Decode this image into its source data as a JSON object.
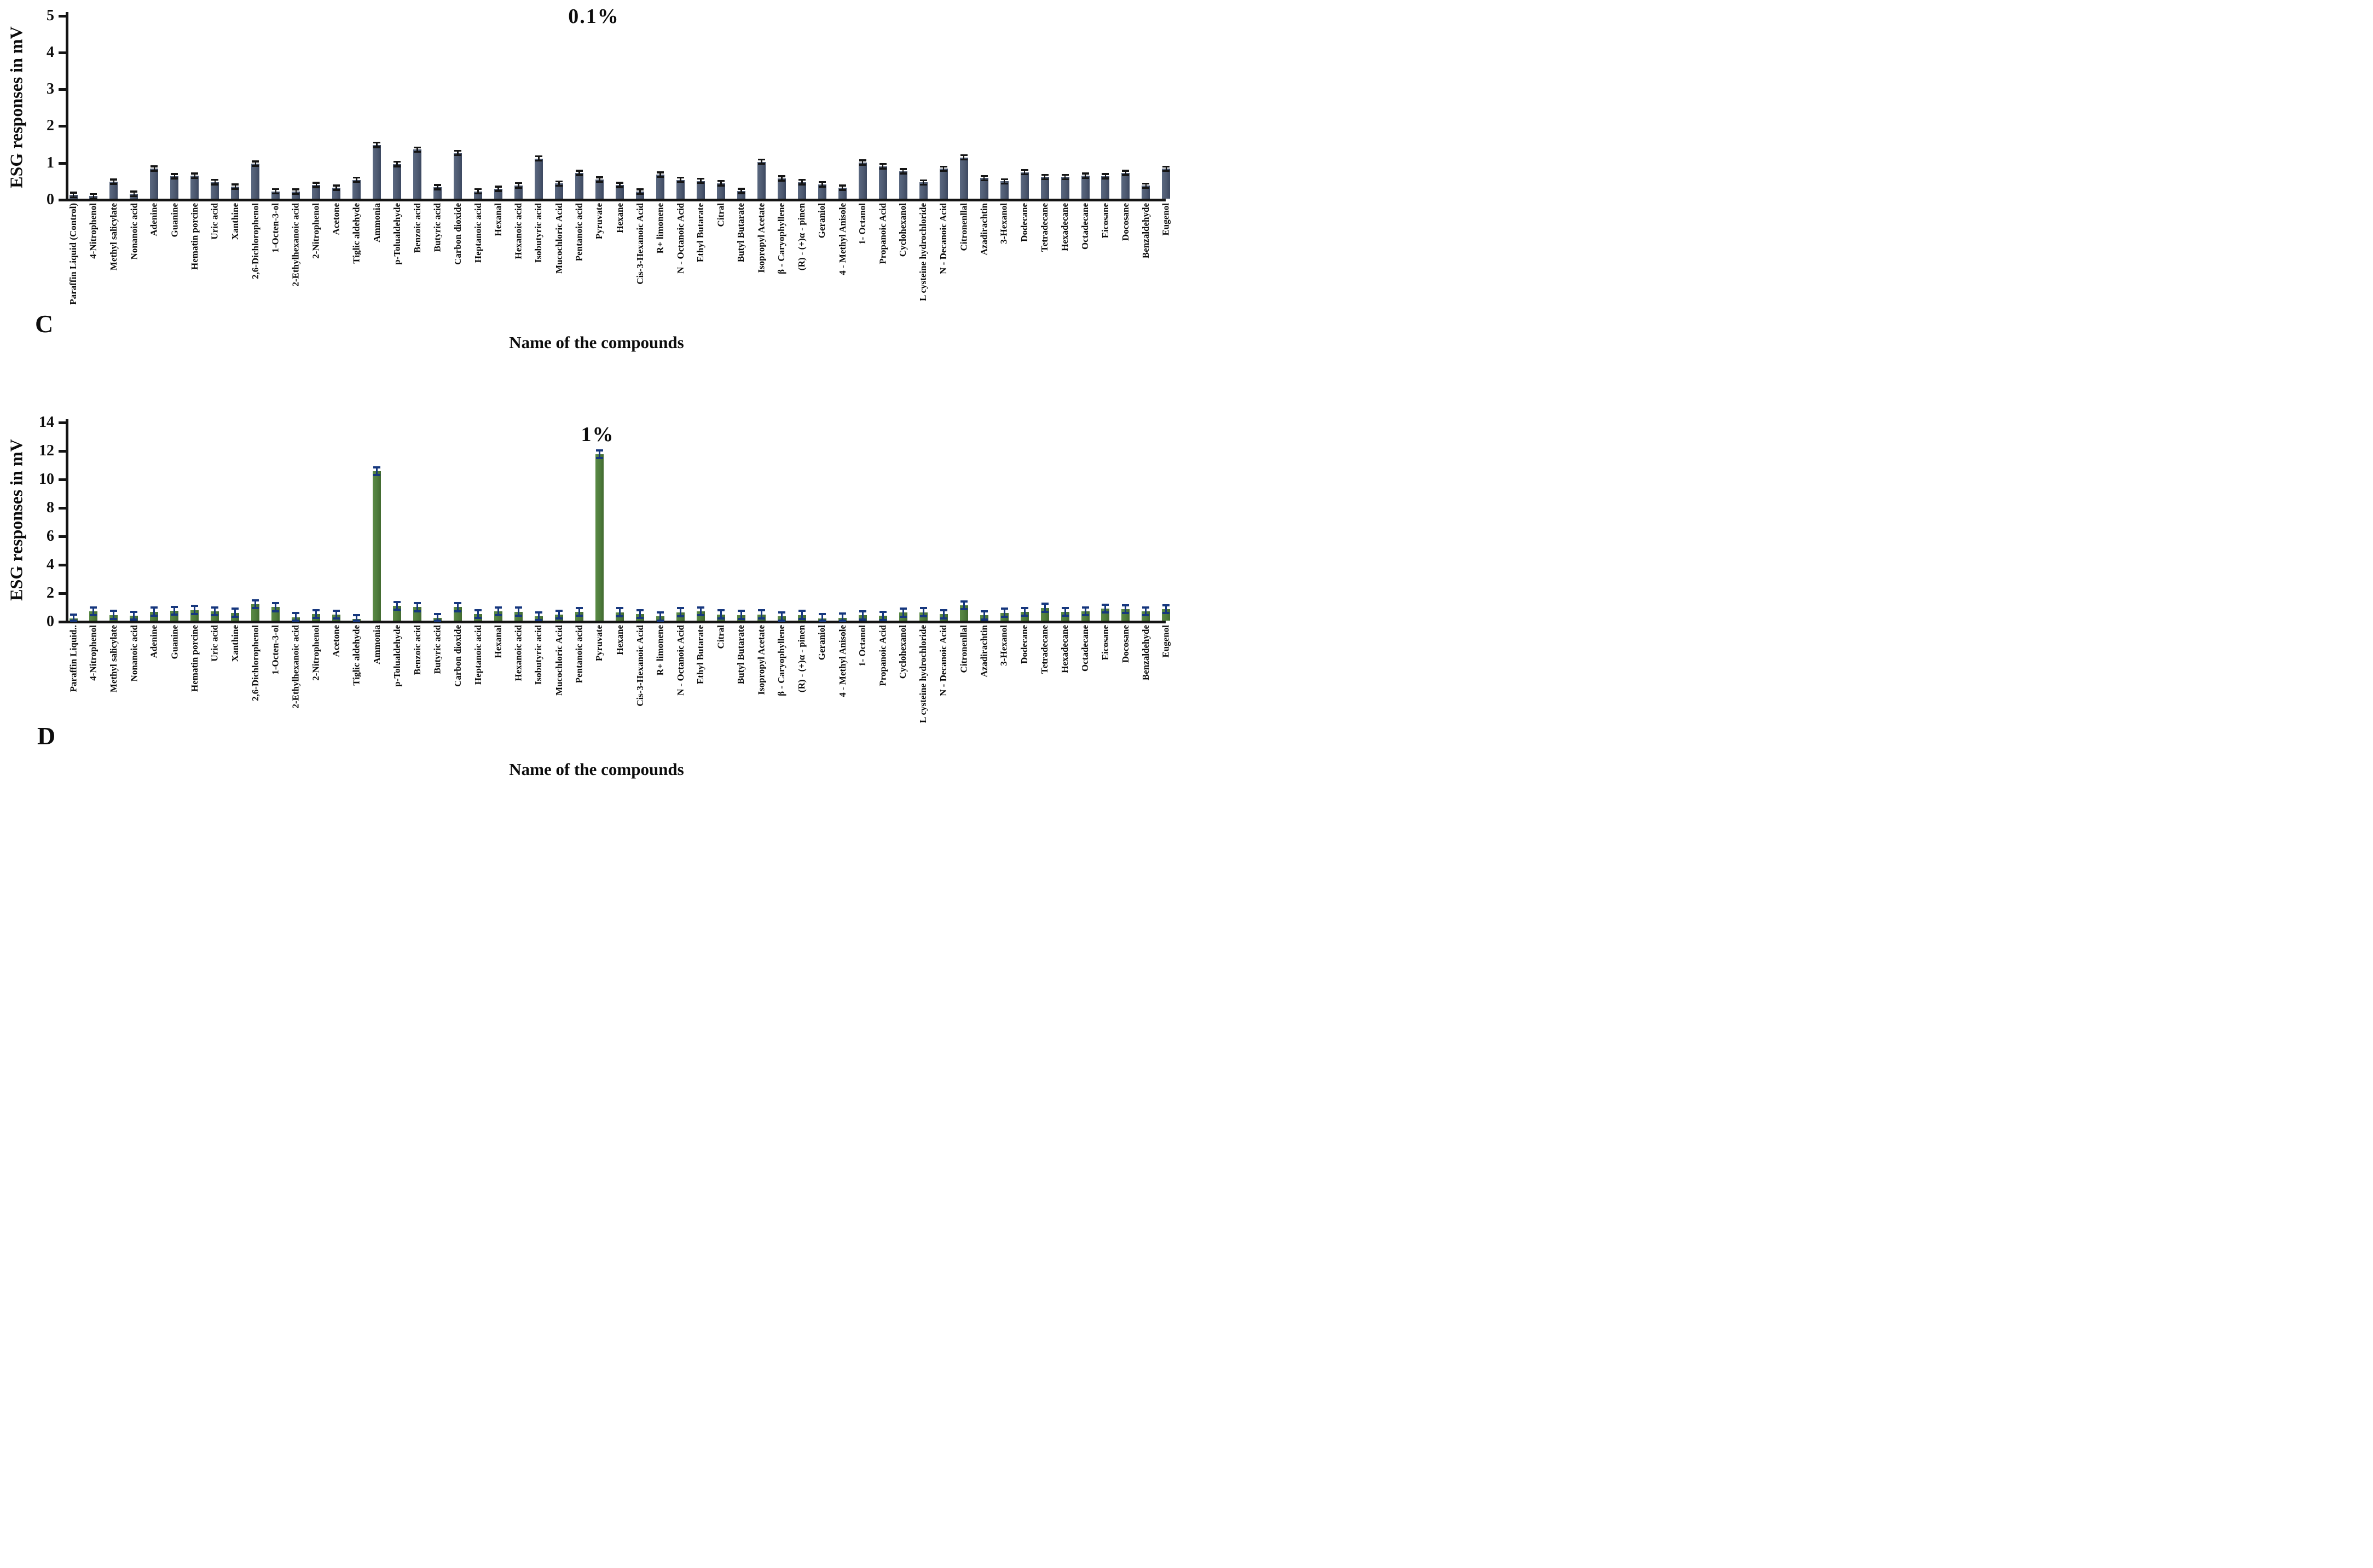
{
  "figure": {
    "panels": [
      {
        "letter": "C"
      },
      {
        "letter": "D"
      }
    ]
  },
  "chart_data": [
    {
      "type": "bar",
      "id": "C",
      "title": "0.1%",
      "xlabel": "Name of the compounds",
      "ylabel": "ESG responses in mV",
      "ylim": [
        0,
        5
      ],
      "yticks": [
        0,
        1,
        2,
        3,
        4,
        5
      ],
      "grid": false,
      "legend": "none",
      "bar_color_light": "#5a6880",
      "bar_color": "#4e5a71",
      "bar_color_dark": "#3c4860",
      "error_color": "#141414",
      "error": 0.06,
      "categories": [
        "Paraffin Liquid (Control)",
        "4-Nitrophenol",
        "Methyl salicylate",
        "Nonanoic acid",
        "Adenine",
        "Guanine",
        "Hematin porcine",
        "Uric acid",
        "Xanthine",
        "2,6-Dichlorophenol",
        "1-Octen-3-ol",
        "2-Ethylhexanoic acid",
        "2-Nitrophenol",
        "Acetone",
        "Tiglic aldehyde",
        "Ammonia",
        "p-Tolualdehyde",
        "Benzoic acid",
        "Butyric acid",
        "Carbon dioxide",
        "Heptanoic acid",
        "Hexanal",
        "Hexanoic acid",
        "Isobutyric acid",
        "Mucochloric Acid",
        "Pentanoic acid",
        "Pyruvate",
        "Hexane",
        "Cis-3-Hexanoic Acid",
        "R+ limonene",
        "N - Octanoic Acid",
        "Ethyl Butarate",
        "Citral",
        "Butyl Butarate",
        "Isopropyl Acetate",
        "β - Caryophyllene",
        "(R) - (+)α - pinen",
        "Geraniol",
        "4 - Methyl Anisole",
        "1- Octanol",
        "Propanoic Acid",
        "Cyclohexanol",
        "L cysteine hydrochloride",
        "N - Decanoic Acid",
        "Citronenllal",
        "Azadirachtin",
        "3-Hexanol",
        "Dodecane",
        "Tetradecane",
        "Hexadecane",
        "Octadecane",
        "Eicosane",
        "Docosane",
        "Benzaldehyde",
        "Eugenol"
      ],
      "values": [
        0.1,
        0.07,
        0.46,
        0.13,
        0.82,
        0.61,
        0.62,
        0.45,
        0.33,
        0.95,
        0.2,
        0.19,
        0.37,
        0.3,
        0.51,
        1.46,
        0.94,
        1.33,
        0.31,
        1.24,
        0.2,
        0.27,
        0.36,
        1.09,
        0.41,
        0.7,
        0.52,
        0.37,
        0.19,
        0.65,
        0.51,
        0.48,
        0.42,
        0.21,
        1.0,
        0.55,
        0.45,
        0.39,
        0.3,
        0.98,
        0.88,
        0.74,
        0.44,
        0.81,
        1.12,
        0.56,
        0.47,
        0.72,
        0.59,
        0.59,
        0.62,
        0.61,
        0.7,
        0.35,
        0.81
      ]
    },
    {
      "type": "bar",
      "id": "D",
      "title": "1%",
      "xlabel": "Name of the compounds",
      "ylabel": "ESG responses in mV",
      "ylim": [
        0,
        14
      ],
      "yticks": [
        0,
        2,
        4,
        6,
        8,
        10,
        12,
        14
      ],
      "grid": false,
      "legend": "none",
      "bar_color_light": "#5b8a46",
      "bar_color": "#4f7d3c",
      "bar_color_dark": "#426a30",
      "error_color": "#16377e",
      "error": 0.28,
      "categories": [
        "Paraffin Liquid..",
        "4-Nitrophenol",
        "Methyl salicylate",
        "Nonanoic acid",
        "Adenine",
        "Guanine",
        "Hematin porcine",
        "Uric acid",
        "Xanthine",
        "2,6-Dichlorophenol",
        "1-Octen-3-ol",
        "2-Ethylhexanoic acid",
        "2-Nitrophenol",
        "Acetone",
        "Tiglic aldehyde",
        "Ammonia",
        "p-Tolualdehyde",
        "Benzoic acid",
        "Butyric acid",
        "Carbon dioxide",
        "Heptanoic acid",
        "Hexanal",
        "Hexanoic acid",
        "Isobutyric acid",
        "Mucochloric Acid",
        "Pentanoic acid",
        "Pyruvate",
        "Hexane",
        "Cis-3-Hexanoic Acid",
        "R+ limonene",
        "N - Octanoic Acid",
        "Ethyl Butarate",
        "Citral",
        "Butyl Butarate",
        "Isopropyl Acetate",
        "β - Caryophyllene",
        "(R) - (+)α - pinen",
        "Geraniol",
        "4 - Methyl Anisole",
        "1- Octanol",
        "Propanoic Acid",
        "Cyclohexanol",
        "L cysteine hydrochloride",
        "N - Decanoic Acid",
        "Citronenllal",
        "Azadirachtin",
        "3-Hexanol",
        "Dodecane",
        "Tetradecane",
        "Hexadecane",
        "Octadecane",
        "Eicosane",
        "Docosane",
        "Benzaldehyde",
        "Eugenol"
      ],
      "values": [
        0.15,
        0.65,
        0.4,
        0.35,
        0.63,
        0.7,
        0.75,
        0.65,
        0.55,
        1.15,
        0.95,
        0.25,
        0.46,
        0.42,
        0.12,
        10.5,
        1.04,
        0.95,
        0.18,
        0.95,
        0.46,
        0.65,
        0.63,
        0.31,
        0.42,
        0.61,
        11.7,
        0.59,
        0.46,
        0.29,
        0.59,
        0.65,
        0.44,
        0.4,
        0.44,
        0.29,
        0.4,
        0.17,
        0.21,
        0.37,
        0.33,
        0.56,
        0.59,
        0.45,
        1.08,
        0.37,
        0.55,
        0.62,
        0.9,
        0.62,
        0.65,
        0.85,
        0.8,
        0.65,
        0.8
      ]
    }
  ]
}
